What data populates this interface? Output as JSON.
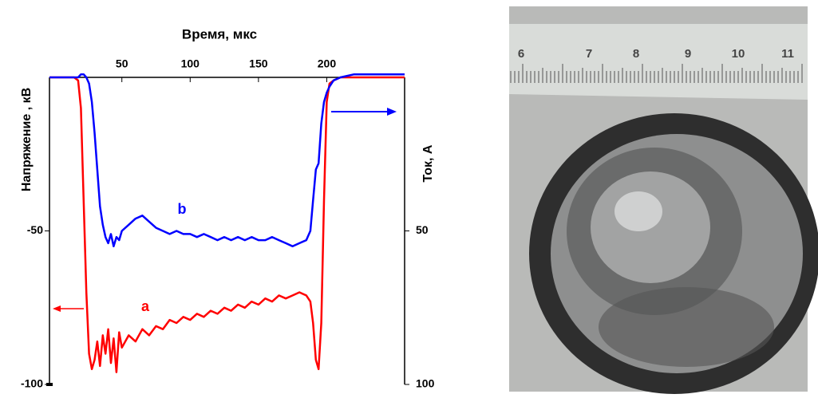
{
  "chart_data": {
    "type": "line",
    "x_label": "Время, мкс",
    "y_label": "Напряжение , кВ",
    "y2_label": "Ток, А",
    "x": [
      -3,
      5,
      10,
      15,
      18,
      20,
      22,
      24,
      26,
      28,
      30,
      32,
      34,
      36,
      38,
      40,
      42,
      44,
      46,
      48,
      50,
      55,
      60,
      65,
      70,
      75,
      80,
      85,
      90,
      95,
      100,
      105,
      110,
      115,
      120,
      125,
      130,
      135,
      140,
      145,
      150,
      155,
      160,
      165,
      170,
      175,
      180,
      185,
      188,
      190,
      192,
      194,
      196,
      198,
      200,
      202,
      205,
      210,
      220,
      230,
      240,
      257
    ],
    "series": [
      {
        "name": "a",
        "color": "#ff0000",
        "values": [
          0,
          0,
          0,
          0,
          -1,
          -10,
          -40,
          -70,
          -90,
          -95,
          -92,
          -86,
          -94,
          -84,
          -90,
          -82,
          -93,
          -85,
          -96,
          -83,
          -88,
          -84,
          -86,
          -82,
          -84,
          -81,
          -82,
          -79,
          -80,
          -78,
          -79,
          -77,
          -78,
          -76,
          -77,
          -75,
          -76,
          -74,
          -75,
          -73,
          -74,
          -72,
          -73,
          -71,
          -72,
          -71,
          -70,
          -71,
          -73,
          -80,
          -92,
          -95,
          -80,
          -40,
          -8,
          -2,
          -1,
          0,
          0,
          0,
          0,
          0
        ]
      },
      {
        "name": "b",
        "color": "#0000ff",
        "axis": "y2",
        "values": [
          0,
          0,
          0,
          0,
          0,
          -1,
          -1,
          0,
          2,
          8,
          18,
          30,
          42,
          48,
          52,
          54,
          51,
          55,
          52,
          53,
          50,
          48,
          46,
          45,
          47,
          49,
          50,
          51,
          50,
          51,
          51,
          52,
          51,
          52,
          53,
          52,
          53,
          52,
          53,
          52,
          53,
          53,
          52,
          53,
          54,
          55,
          54,
          53,
          50,
          40,
          30,
          28,
          15,
          8,
          5,
          3,
          1,
          0,
          -1,
          -1,
          -1,
          -1
        ]
      }
    ],
    "xlim": [
      -3,
      257
    ],
    "xticks": [
      50,
      100,
      150,
      200
    ],
    "ylim": [
      -100,
      0
    ],
    "yticks": [
      -50,
      -100
    ],
    "y2lim": [
      0,
      100
    ],
    "y2ticks": [
      50,
      100
    ],
    "y2_inverted": true
  },
  "photo": {
    "ruler_labels": [
      "6",
      "7",
      "8",
      "9",
      "10",
      "11"
    ]
  }
}
